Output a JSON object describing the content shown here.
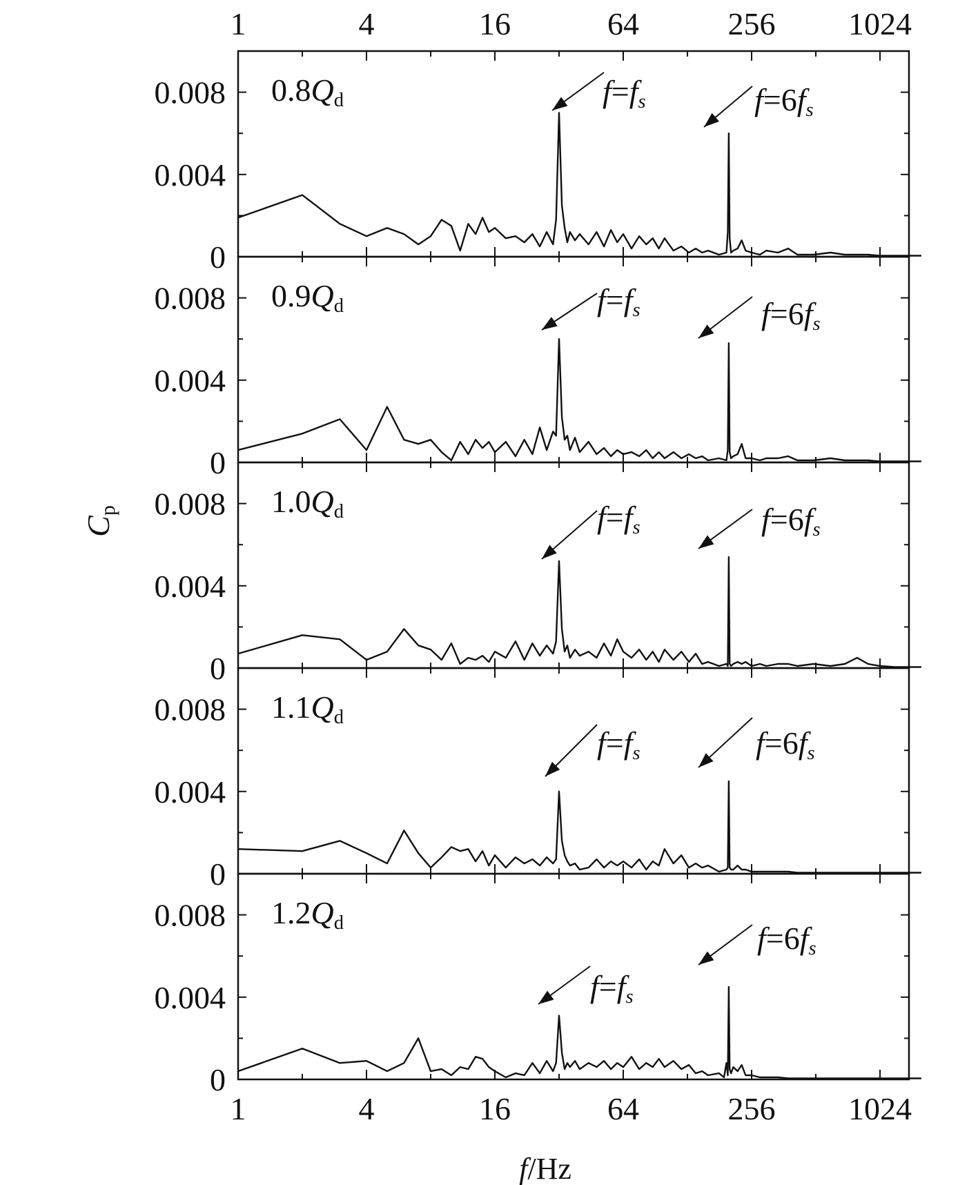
{
  "chart_data": {
    "type": "line",
    "xlabel": "f/Hz",
    "ylabel": "Cp",
    "xscale": "log2",
    "xlim": [
      1,
      1600
    ],
    "x_ticks": [
      "1",
      "4",
      "16",
      "64",
      "256",
      "1024"
    ],
    "ylim": [
      0,
      0.01
    ],
    "y_ticks": [
      "0",
      "0.004",
      "0.008"
    ],
    "peak_frequencies": {
      "f_s": 33.3,
      "six_f_s": 200
    },
    "panels": [
      {
        "label": "0.8Qd",
        "annotations": [
          "f=fs",
          "f=6fs"
        ],
        "series": {
          "x": [
            1,
            2,
            3,
            4,
            5,
            6,
            7,
            8,
            9,
            10,
            11,
            12,
            13,
            14,
            15,
            16,
            18,
            20,
            22,
            24,
            26,
            28,
            30,
            31,
            32,
            33,
            34,
            35,
            36,
            38,
            40,
            44,
            48,
            52,
            56,
            60,
            64,
            70,
            76,
            82,
            88,
            94,
            100,
            110,
            120,
            130,
            140,
            150,
            160,
            180,
            195,
            198,
            200,
            202,
            205,
            210,
            220,
            230,
            240,
            256,
            280,
            300,
            340,
            380,
            420,
            500,
            600,
            700,
            800,
            900,
            1024,
            1200,
            1400,
            1600
          ],
          "y": [
            0.0019,
            0.003,
            0.0016,
            0.001,
            0.0014,
            0.0011,
            0.0006,
            0.001,
            0.0018,
            0.0015,
            0.0003,
            0.0016,
            0.0011,
            0.0019,
            0.0012,
            0.0014,
            0.0009,
            0.001,
            0.0007,
            0.0011,
            0.0005,
            0.0012,
            0.0006,
            0.0018,
            0.007,
            0.0025,
            0.0014,
            0.0007,
            0.0012,
            0.0008,
            0.0011,
            0.0006,
            0.0012,
            0.0005,
            0.0013,
            0.0007,
            0.0011,
            0.0004,
            0.001,
            0.0006,
            0.0009,
            0.0004,
            0.0009,
            0.0003,
            0.0005,
            0.0002,
            0.0004,
            0.0002,
            0.0003,
            0.0001,
            0.0002,
            0.0012,
            0.006,
            0.0009,
            0.0002,
            0.0003,
            0.0004,
            0.0008,
            0.0003,
            0.0002,
            0.0001,
            0.0003,
            0.0002,
            0.0004,
            0.0001,
            0.0001,
            0.0002,
            0.0001,
            0.0001,
            0.0001,
            5e-05,
            5e-05,
            5e-05,
            5e-05
          ]
        }
      },
      {
        "label": "0.9Qd",
        "annotations": [
          "f=fs",
          "f=6fs"
        ],
        "series": {
          "x": [
            1,
            2,
            3,
            4,
            5,
            6,
            7,
            8,
            9,
            10,
            11,
            12,
            13,
            14,
            15,
            16,
            18,
            20,
            22,
            24,
            26,
            28,
            30,
            31,
            32,
            33,
            34,
            35,
            36,
            38,
            40,
            44,
            48,
            52,
            56,
            60,
            64,
            70,
            76,
            82,
            88,
            94,
            100,
            110,
            120,
            130,
            140,
            150,
            160,
            180,
            195,
            198,
            200,
            202,
            205,
            210,
            220,
            230,
            240,
            256,
            280,
            300,
            340,
            380,
            420,
            500,
            600,
            700,
            800,
            900,
            1024,
            1200,
            1400,
            1600
          ],
          "y": [
            0.0006,
            0.0014,
            0.0021,
            0.0006,
            0.0027,
            0.0011,
            0.0009,
            0.0011,
            0.0005,
            0.0001,
            0.001,
            0.0004,
            0.0011,
            0.0007,
            0.001,
            0.0005,
            0.001,
            0.0003,
            0.0011,
            0.0004,
            0.0017,
            0.0006,
            0.0015,
            0.0013,
            0.006,
            0.0022,
            0.0011,
            0.0013,
            0.0006,
            0.0012,
            0.0005,
            0.001,
            0.0004,
            0.0007,
            0.0003,
            0.0006,
            0.0004,
            0.0005,
            0.0003,
            0.0006,
            0.0002,
            0.0005,
            0.0002,
            0.0005,
            0.0002,
            0.0004,
            0.0002,
            0.0003,
            0.0001,
            0.0002,
            0.0001,
            0.0006,
            0.0058,
            0.0005,
            0.0002,
            0.0003,
            0.0004,
            0.0009,
            0.0002,
            0.0002,
            0.0001,
            0.0002,
            0.0002,
            0.0003,
            0.0001,
            0.0001,
            0.0002,
            0.0001,
            0.0001,
            0.0001,
            5e-05,
            5e-05,
            5e-05,
            5e-05
          ]
        }
      },
      {
        "label": "1.0Qd",
        "annotations": [
          "f=fs",
          "f=6fs"
        ],
        "series": {
          "x": [
            1,
            2,
            3,
            4,
            5,
            6,
            7,
            8,
            9,
            10,
            11,
            12,
            13,
            14,
            15,
            16,
            18,
            20,
            22,
            24,
            26,
            28,
            30,
            31,
            32,
            33,
            34,
            35,
            36,
            38,
            40,
            44,
            48,
            52,
            56,
            60,
            64,
            70,
            76,
            82,
            88,
            94,
            100,
            110,
            120,
            130,
            140,
            150,
            160,
            180,
            195,
            198,
            200,
            202,
            205,
            210,
            220,
            230,
            240,
            256,
            280,
            300,
            340,
            380,
            420,
            500,
            600,
            700,
            800,
            900,
            1024,
            1200,
            1400,
            1600
          ],
          "y": [
            0.0007,
            0.0016,
            0.0014,
            0.0004,
            0.0008,
            0.0019,
            0.0011,
            0.0009,
            0.0004,
            0.0012,
            0.0002,
            0.0005,
            0.0004,
            0.0006,
            0.0003,
            0.0008,
            0.0005,
            0.0013,
            0.0004,
            0.0012,
            0.0006,
            0.0011,
            0.0007,
            0.0013,
            0.0052,
            0.0019,
            0.0008,
            0.0011,
            0.0005,
            0.0009,
            0.0006,
            0.0008,
            0.0005,
            0.0012,
            0.0006,
            0.0014,
            0.0008,
            0.0005,
            0.0009,
            0.0004,
            0.0008,
            0.0003,
            0.0009,
            0.0004,
            0.0008,
            0.0003,
            0.0007,
            0.0002,
            0.0003,
            0.0001,
            0.0002,
            0.0001,
            0.0054,
            0.0002,
            0.0001,
            0.0002,
            0.0003,
            0.0002,
            0.0003,
            0.0001,
            0.0002,
            0.0001,
            0.0002,
            0.0002,
            0.0001,
            0.0002,
            0.0001,
            0.0002,
            0.0005,
            0.0002,
            0.0001,
            5e-05,
            5e-05,
            5e-05
          ]
        }
      },
      {
        "label": "1.1Qd",
        "annotations": [
          "f=fs",
          "f=6fs"
        ],
        "series": {
          "x": [
            1,
            2,
            3,
            4,
            5,
            6,
            7,
            8,
            9,
            10,
            11,
            12,
            13,
            14,
            15,
            16,
            18,
            20,
            22,
            24,
            26,
            28,
            30,
            31,
            32,
            33,
            34,
            35,
            36,
            38,
            40,
            44,
            48,
            52,
            56,
            60,
            64,
            70,
            76,
            82,
            88,
            94,
            100,
            110,
            120,
            130,
            140,
            150,
            160,
            180,
            195,
            198,
            200,
            202,
            205,
            210,
            220,
            230,
            240,
            256,
            280,
            300,
            340,
            380,
            420,
            500,
            600,
            700,
            800,
            900,
            1024,
            1200,
            1400,
            1600
          ],
          "y": [
            0.0012,
            0.0011,
            0.0016,
            0.001,
            0.0005,
            0.0021,
            0.001,
            0.0003,
            0.0008,
            0.0013,
            0.0011,
            0.0012,
            0.0006,
            0.0011,
            0.0004,
            0.0009,
            0.0003,
            0.0008,
            0.0005,
            0.0007,
            0.0004,
            0.0008,
            0.0005,
            0.0007,
            0.004,
            0.0016,
            0.0009,
            0.0006,
            0.0004,
            0.0005,
            0.0002,
            0.0003,
            0.0007,
            0.0003,
            0.0006,
            0.0004,
            0.0006,
            0.0003,
            0.0007,
            0.0002,
            0.0006,
            0.0004,
            0.0012,
            0.0005,
            0.0009,
            0.0003,
            0.0005,
            0.0003,
            0.0004,
            0.0001,
            0.0002,
            0.0003,
            0.0045,
            0.0003,
            0.0002,
            0.0002,
            0.0004,
            0.0002,
            0.0002,
            0.0001,
            0.0001,
            0.0001,
            0.0001,
            0.0001,
            5e-05,
            5e-05,
            5e-05,
            5e-05,
            5e-05,
            5e-05,
            5e-05,
            5e-05,
            5e-05,
            5e-05
          ]
        }
      },
      {
        "label": "1.2Qd",
        "annotations": [
          "f=fs",
          "f=6fs"
        ],
        "series": {
          "x": [
            1,
            2,
            3,
            4,
            5,
            6,
            7,
            8,
            9,
            10,
            11,
            12,
            13,
            14,
            15,
            16,
            18,
            20,
            22,
            24,
            26,
            28,
            30,
            31,
            32,
            33,
            34,
            35,
            36,
            38,
            40,
            44,
            48,
            52,
            56,
            60,
            64,
            70,
            76,
            82,
            88,
            94,
            100,
            110,
            120,
            130,
            140,
            150,
            160,
            180,
            190,
            195,
            198,
            200,
            202,
            205,
            210,
            220,
            230,
            240,
            256,
            280,
            300,
            340,
            380,
            420,
            500,
            600,
            700,
            800,
            900,
            1024,
            1200,
            1400,
            1600
          ],
          "y": [
            0.0004,
            0.0015,
            0.0008,
            0.0009,
            0.0004,
            0.0008,
            0.002,
            0.0004,
            0.0005,
            0.0002,
            0.0006,
            0.0005,
            0.0011,
            0.001,
            0.0006,
            0.0004,
            0.0001,
            0.0003,
            0.0002,
            0.0008,
            0.0003,
            0.0009,
            0.0004,
            0.0008,
            0.0031,
            0.0013,
            0.0005,
            0.0008,
            0.0006,
            0.0009,
            0.0005,
            0.0008,
            0.0006,
            0.0009,
            0.0005,
            0.0008,
            0.0006,
            0.0011,
            0.0005,
            0.0008,
            0.0006,
            0.001,
            0.0006,
            0.0009,
            0.0005,
            0.0007,
            0.0003,
            0.0004,
            0.0002,
            0.0003,
            0.0001,
            0.0008,
            0.0002,
            0.0045,
            0.0005,
            0.0003,
            0.0006,
            0.0004,
            0.0007,
            0.0002,
            0.0002,
            0.0001,
            0.0001,
            0.0001,
            5e-05,
            5e-05,
            5e-05,
            5e-05,
            5e-05,
            5e-05,
            5e-05,
            5e-05,
            5e-05,
            5e-05,
            5e-05
          ]
        }
      }
    ]
  }
}
